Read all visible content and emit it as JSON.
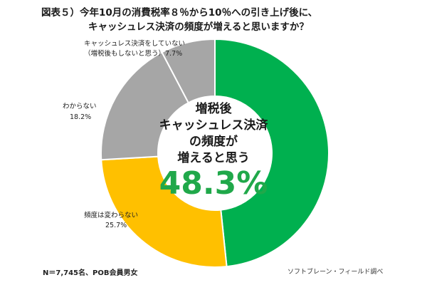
{
  "title": {
    "line1": "図表５）今年10月の消費税率８％から10％への引き上げ後に、",
    "line2": "キャッシュレス決済の頻度が増えると思いますか？"
  },
  "chart_data": {
    "type": "pie",
    "categories": [
      "増税後キャッシュレス決済の頻度が増えると思う",
      "頻度は変わらない",
      "わからない",
      "キャッシュレス決済をしていない（増税後もしないと思う）"
    ],
    "values": [
      48.3,
      25.7,
      18.2,
      7.7
    ],
    "colors": [
      "#00b04f",
      "#ffc000",
      "#a6a6a6",
      "#a6a6a6"
    ],
    "center_label": {
      "lines": [
        "増税後",
        "キャッシュレス決済",
        "の頻度が",
        "増えると思う"
      ],
      "value": "48.3%"
    },
    "slice_labels": [
      {
        "lines": [
          "頻度は変わらない",
          "25.7%"
        ]
      },
      {
        "lines": [
          "わからない",
          "18.2%"
        ]
      },
      {
        "lines": [
          "キャッシュレス決済をしていない",
          "（増税後もしないと思う）7.7%"
        ]
      }
    ]
  },
  "footer": {
    "sample": "N＝7,745名、POB会員男女",
    "source": "ソフトブレーン・フィールド調べ"
  }
}
